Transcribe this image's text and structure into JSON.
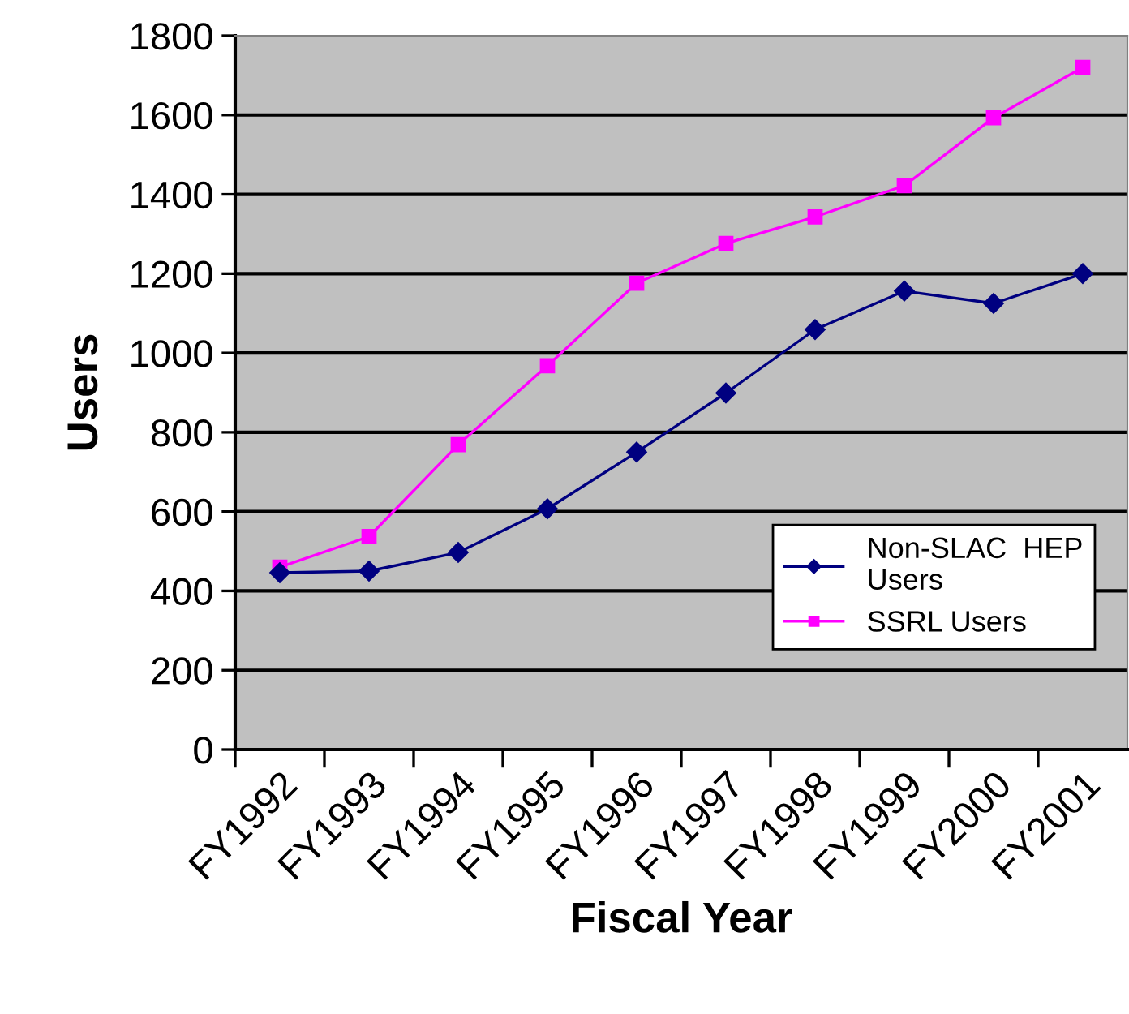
{
  "chart_data": {
    "type": "line",
    "xlabel": "Fiscal Year",
    "ylabel": "Users",
    "categories": [
      "FY1992",
      "FY1993",
      "FY1994",
      "FY1995",
      "FY1996",
      "FY1997",
      "FY1998",
      "FY1999",
      "FY2000",
      "FY2001"
    ],
    "series": [
      {
        "name": "Non-SLAC  HEP Users",
        "color": "#000080",
        "marker": "diamond",
        "values": [
          446,
          450,
          497,
          607,
          750,
          899,
          1059,
          1156,
          1125,
          1200
        ]
      },
      {
        "name": "SSRL Users",
        "color": "#ff00ff",
        "marker": "square",
        "values": [
          460,
          537,
          769,
          968,
          1176,
          1276,
          1343,
          1422,
          1593,
          1720
        ]
      }
    ],
    "ylim": [
      0,
      1800
    ],
    "yticks": [
      0,
      200,
      400,
      600,
      800,
      1000,
      1200,
      1400,
      1600,
      1800
    ],
    "grid": "y",
    "legend": "bottom right"
  }
}
